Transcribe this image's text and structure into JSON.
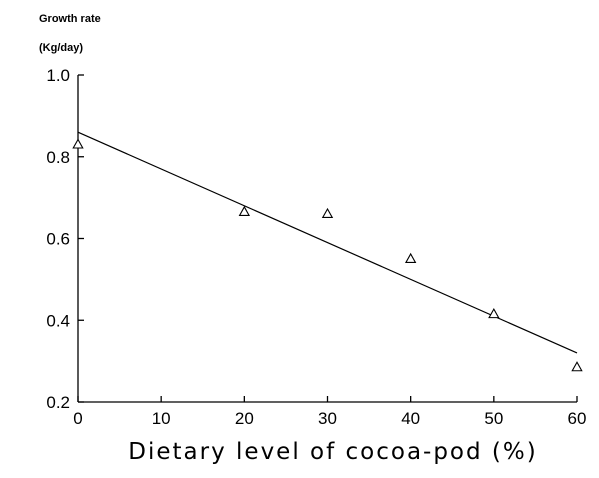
{
  "chart_data": {
    "type": "scatter",
    "title": "",
    "ylabel_lines": [
      "Growth rate",
      "(Kg/day)"
    ],
    "xlabel": "Dietary level of cocoa-pod (%)",
    "xlim": [
      0,
      60
    ],
    "ylim": [
      0.2,
      1.0
    ],
    "x_ticks": [
      0,
      10,
      20,
      30,
      40,
      50,
      60
    ],
    "x_tick_labels": [
      "0",
      "10",
      "20",
      "30",
      "40",
      "50",
      "60"
    ],
    "y_ticks": [
      0.2,
      0.4,
      0.6,
      0.8,
      1.0
    ],
    "y_tick_labels": [
      "0.2",
      "0.4",
      "0.6",
      "0.8",
      "1.0"
    ],
    "grid": false,
    "marker": "open-triangle",
    "series": [
      {
        "x": [
          0,
          20,
          30,
          40,
          50,
          60
        ],
        "y": [
          0.83,
          0.665,
          0.66,
          0.55,
          0.415,
          0.285
        ]
      }
    ],
    "trend_line": {
      "x": [
        0,
        60
      ],
      "y": [
        0.86,
        0.32
      ]
    },
    "colors": {
      "ink": "#000000",
      "background": "#ffffff"
    }
  }
}
